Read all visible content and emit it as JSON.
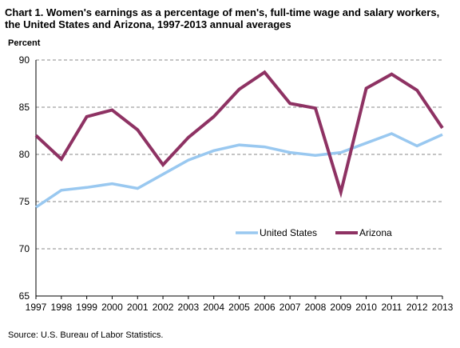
{
  "chart_data": {
    "type": "line",
    "title": "Chart 1. Women's earnings as a percentage of men's, full-time wage and salary workers, the United States and Arizona, 1997-2013  annual averages",
    "ylabel": "Percent",
    "source": "Source: U.S.  Bureau of Labor Statistics.",
    "x": [
      "1997",
      "1998",
      "1999",
      "2000",
      "2001",
      "2002",
      "2003",
      "2004",
      "2005",
      "2006",
      "2007",
      "2008",
      "2009",
      "2010",
      "2011",
      "2012",
      "2013"
    ],
    "ylim": [
      65,
      90
    ],
    "yticks": [
      65,
      70,
      75,
      80,
      85,
      90
    ],
    "grid": true,
    "legend_position": "center-right",
    "series": [
      {
        "name": "United States",
        "color": "#99c8f0",
        "values": [
          74.4,
          76.2,
          76.5,
          76.9,
          76.4,
          77.9,
          79.4,
          80.4,
          81.0,
          80.8,
          80.2,
          79.9,
          80.2,
          81.2,
          82.2,
          80.9,
          82.1
        ]
      },
      {
        "name": "Arizona",
        "color": "#8e3263",
        "values": [
          82.0,
          79.5,
          84.0,
          84.7,
          82.6,
          78.9,
          81.8,
          84.0,
          86.9,
          88.7,
          85.4,
          84.9,
          76.0,
          87.0,
          88.5,
          86.8,
          82.8
        ]
      }
    ]
  }
}
